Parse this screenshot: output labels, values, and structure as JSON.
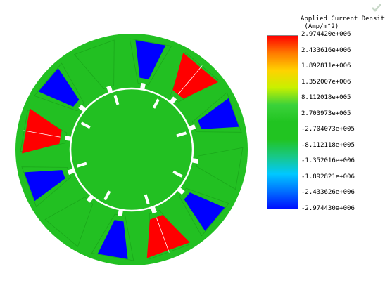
{
  "legend": {
    "title": "Applied Current Density",
    "units": "(Amp/m^2)",
    "labels": [
      "2.974420e+006",
      "2.433616e+006",
      "1.892811e+006",
      "1.352007e+006",
      "8.112018e+005",
      "2.703973e+005",
      "-2.704073e+005",
      "-8.112118e+005",
      "-1.352016e+006",
      "-1.892821e+006",
      "-2.433626e+006",
      "-2.974430e+006"
    ],
    "colormap": [
      "#ff0000",
      "#ff7a00",
      "#ffd200",
      "#c8f000",
      "#3ad23a",
      "#21c421",
      "#21c421",
      "#18c888",
      "#00c8ff",
      "#0070ff",
      "#0010ff"
    ]
  },
  "colors": {
    "positive": "#ff0000",
    "negative": "#0000ff",
    "steel": "#22c022",
    "background": "#ffffff"
  },
  "slots": [
    {
      "position": 1,
      "sign": "negative"
    },
    {
      "position": 2,
      "sign": "positive"
    },
    {
      "position": 3,
      "sign": "negative"
    },
    {
      "position": 4,
      "sign": "neutral"
    },
    {
      "position": 5,
      "sign": "negative"
    },
    {
      "position": 6,
      "sign": "positive"
    },
    {
      "position": 7,
      "sign": "negative"
    },
    {
      "position": 8,
      "sign": "neutral"
    },
    {
      "position": 9,
      "sign": "negative"
    },
    {
      "position": 10,
      "sign": "positive"
    },
    {
      "position": 11,
      "sign": "negative"
    },
    {
      "position": 12,
      "sign": "neutral"
    }
  ],
  "icons": {
    "toolbar": "checkmark-icon"
  }
}
